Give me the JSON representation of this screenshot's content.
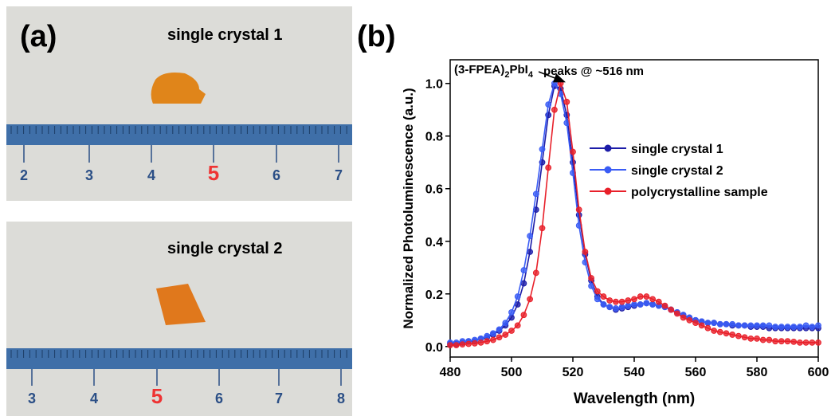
{
  "panel_a": {
    "label": "(a)",
    "photos": [
      {
        "caption": "single crystal 1",
        "ruler_numbers": [
          2,
          3,
          4,
          5,
          6,
          7
        ]
      },
      {
        "caption": "single crystal 2",
        "ruler_numbers": [
          3,
          4,
          5,
          6,
          7,
          8
        ]
      }
    ]
  },
  "chart_data": {
    "type": "line",
    "panel_label": "(b)",
    "x_label": "Wavelength (nm)",
    "y_label": "Normalized Photoluminescence (a.u.)",
    "compound_label": [
      "(3-FPEA)",
      "2",
      "PbI",
      "4"
    ],
    "annotation": {
      "text": "peaks @ ~516 nm",
      "x": 516,
      "y": 1.0
    },
    "xlim": [
      480,
      600
    ],
    "xticks": [
      480,
      500,
      520,
      540,
      560,
      580,
      600
    ],
    "ylim": [
      -0.04,
      1.09
    ],
    "yticks": [
      {
        "value": 0,
        "label": "0.0"
      },
      0.2,
      0.4,
      0.6,
      0.8,
      {
        "value": 1,
        "label": "1.0"
      }
    ],
    "legend": "right",
    "x": [
      480,
      482,
      484,
      486,
      488,
      490,
      492,
      494,
      496,
      498,
      500,
      502,
      504,
      506,
      508,
      510,
      512,
      514,
      516,
      518,
      520,
      522,
      524,
      526,
      528,
      530,
      532,
      534,
      536,
      538,
      540,
      542,
      544,
      546,
      548,
      550,
      552,
      554,
      556,
      558,
      560,
      562,
      564,
      566,
      568,
      570,
      572,
      574,
      576,
      578,
      580,
      582,
      584,
      586,
      588,
      590,
      592,
      594,
      596,
      598,
      600
    ],
    "series": [
      {
        "name": "single crystal 1",
        "color": "#1c1ca8",
        "values": [
          0.01,
          0.01,
          0.015,
          0.02,
          0.02,
          0.03,
          0.035,
          0.045,
          0.06,
          0.08,
          0.11,
          0.16,
          0.24,
          0.36,
          0.52,
          0.7,
          0.88,
          0.99,
          0.98,
          0.88,
          0.7,
          0.5,
          0.35,
          0.25,
          0.19,
          0.16,
          0.15,
          0.14,
          0.145,
          0.15,
          0.155,
          0.16,
          0.165,
          0.16,
          0.155,
          0.15,
          0.14,
          0.13,
          0.12,
          0.11,
          0.1,
          0.095,
          0.09,
          0.09,
          0.085,
          0.085,
          0.08,
          0.08,
          0.08,
          0.075,
          0.075,
          0.075,
          0.07,
          0.07,
          0.07,
          0.07,
          0.07,
          0.07,
          0.07,
          0.07,
          0.07
        ]
      },
      {
        "name": "single crystal 2",
        "color": "#3a5cf5",
        "values": [
          0.015,
          0.015,
          0.02,
          0.02,
          0.025,
          0.03,
          0.04,
          0.05,
          0.065,
          0.09,
          0.13,
          0.19,
          0.29,
          0.42,
          0.58,
          0.75,
          0.92,
          1.0,
          0.96,
          0.85,
          0.66,
          0.46,
          0.32,
          0.23,
          0.18,
          0.16,
          0.15,
          0.145,
          0.15,
          0.155,
          0.16,
          0.16,
          0.165,
          0.16,
          0.155,
          0.15,
          0.14,
          0.13,
          0.12,
          0.11,
          0.1,
          0.095,
          0.09,
          0.09,
          0.085,
          0.085,
          0.085,
          0.08,
          0.08,
          0.08,
          0.08,
          0.08,
          0.08,
          0.075,
          0.075,
          0.075,
          0.075,
          0.075,
          0.08,
          0.075,
          0.08
        ]
      },
      {
        "name": "polycrystalline sample",
        "color": "#e8202a",
        "values": [
          0.005,
          0.005,
          0.008,
          0.01,
          0.012,
          0.015,
          0.02,
          0.025,
          0.035,
          0.045,
          0.06,
          0.08,
          0.12,
          0.18,
          0.28,
          0.45,
          0.68,
          0.9,
          1.0,
          0.93,
          0.74,
          0.52,
          0.36,
          0.26,
          0.21,
          0.19,
          0.175,
          0.17,
          0.17,
          0.175,
          0.18,
          0.19,
          0.19,
          0.18,
          0.17,
          0.155,
          0.14,
          0.125,
          0.11,
          0.1,
          0.09,
          0.08,
          0.07,
          0.06,
          0.055,
          0.05,
          0.045,
          0.04,
          0.035,
          0.03,
          0.03,
          0.025,
          0.025,
          0.02,
          0.02,
          0.02,
          0.018,
          0.015,
          0.015,
          0.015,
          0.015
        ]
      }
    ]
  }
}
